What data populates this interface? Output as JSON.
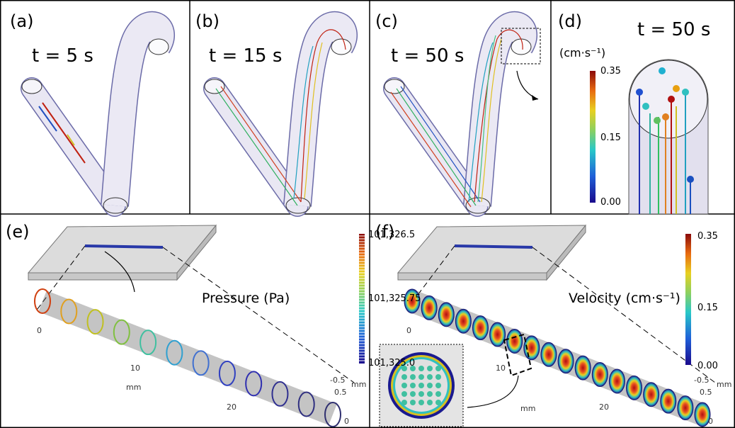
{
  "panels": [
    {
      "label": "(a)",
      "time": "t = 5 s"
    },
    {
      "label": "(b)",
      "time": "t = 15 s"
    },
    {
      "label": "(c)",
      "time": "t = 50 s"
    },
    {
      "label": "(d)",
      "time": "t = 50 s",
      "unit": "(cm·s⁻¹)",
      "ticks": [
        "0.35",
        "0.15",
        "0.00"
      ]
    },
    {
      "label": "(e)",
      "title": "Pressure (Pa)",
      "ticks": [
        "101,326.5",
        "101,325.75",
        "101,325.0"
      ],
      "axis_ticks": [
        "0",
        "10",
        "20"
      ],
      "axis_unit": "mm",
      "depth_ticks": [
        "-0.5",
        "0.5",
        "0"
      ],
      "depth_unit": "mm"
    },
    {
      "label": "(f)",
      "title": "Velocity (cm·s⁻¹)",
      "ticks": [
        "0.35",
        "0.15",
        "0.00"
      ],
      "axis_ticks": [
        "0",
        "10",
        "20"
      ],
      "axis_unit": "mm",
      "depth_ticks": [
        "-0.5",
        "0.5",
        "0"
      ],
      "depth_unit": "mm"
    }
  ]
}
